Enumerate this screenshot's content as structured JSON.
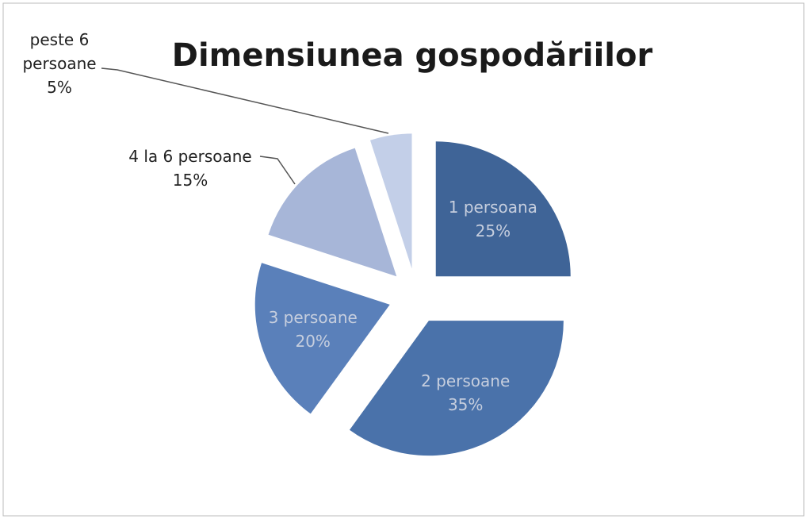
{
  "chart_data": {
    "type": "pie",
    "title": "Dimensiunea gospodăriilor",
    "categories": [
      "1 persoana",
      "2 persoane",
      "3 persoane",
      "4 la 6 persoane",
      "peste 6 persoane"
    ],
    "values": [
      25,
      35,
      20,
      15,
      5
    ],
    "value_labels": [
      "25%",
      "35%",
      "20%",
      "15%",
      "5%"
    ],
    "colors": [
      "#3f6497",
      "#4a72aa",
      "#5a80ba",
      "#a7b6d8",
      "#c3cfe8"
    ]
  }
}
